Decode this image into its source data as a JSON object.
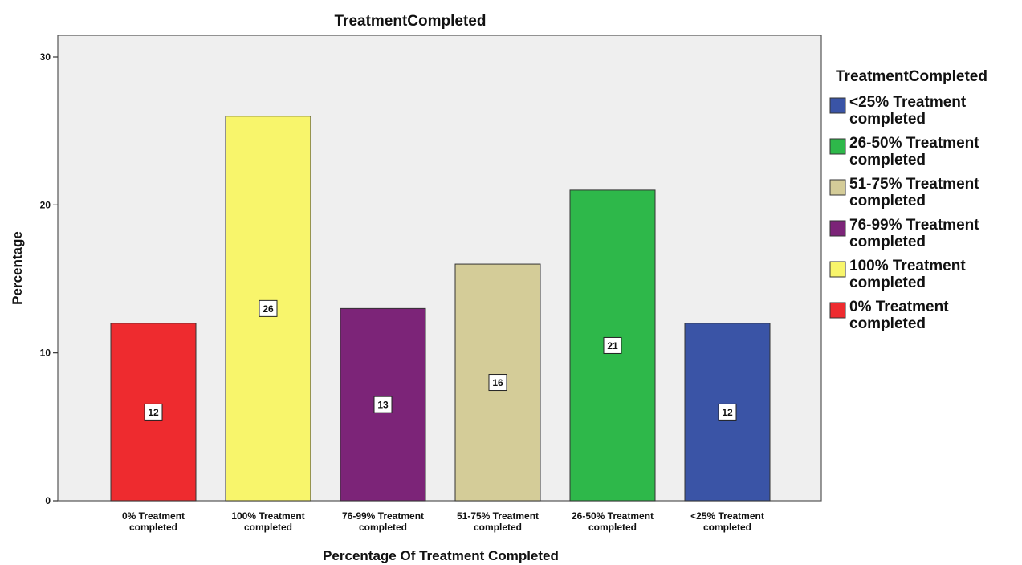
{
  "chart_data": {
    "type": "bar",
    "title": "TreatmentCompleted",
    "xlabel": "Percentage Of Treatment Completed",
    "ylabel": "Percentage",
    "ylim": [
      0,
      30
    ],
    "yticks": [
      0,
      10,
      20,
      30
    ],
    "grid": false,
    "legend_position": "right",
    "categories": [
      "0% Treatment completed",
      "100% Treatment completed",
      "76-99% Treatment completed",
      "51-75% Treatment completed",
      "26-50% Treatment completed",
      "<25% Treatment completed"
    ],
    "category_lines": [
      [
        "0% Treatment",
        "completed"
      ],
      [
        "100% Treatment",
        "completed"
      ],
      [
        "76-99% Treatment",
        "completed"
      ],
      [
        "51-75% Treatment",
        "completed"
      ],
      [
        "26-50% Treatment",
        "completed"
      ],
      [
        "<25% Treatment",
        "completed"
      ]
    ],
    "values": [
      12,
      26,
      13,
      16,
      21,
      12
    ],
    "data_labels": [
      "12",
      "26",
      "13",
      "16",
      "21",
      "12"
    ],
    "colors": [
      "#ee2b2f",
      "#f8f56b",
      "#7c2478",
      "#d4cc98",
      "#2eb84a",
      "#3a54a6"
    ],
    "plot_background": "#efefef",
    "legend": {
      "title": "TreatmentCompleted",
      "items": [
        {
          "lines": [
            "<25% Treatment",
            "completed"
          ],
          "color": "#3a54a6"
        },
        {
          "lines": [
            "26-50% Treatment",
            "completed"
          ],
          "color": "#2eb84a"
        },
        {
          "lines": [
            "51-75% Treatment",
            "completed"
          ],
          "color": "#d4cc98"
        },
        {
          "lines": [
            "76-99% Treatment",
            "completed"
          ],
          "color": "#7c2478"
        },
        {
          "lines": [
            "100% Treatment",
            "completed"
          ],
          "color": "#f8f56b"
        },
        {
          "lines": [
            "0% Treatment",
            "completed"
          ],
          "color": "#ee2b2f"
        }
      ]
    }
  }
}
